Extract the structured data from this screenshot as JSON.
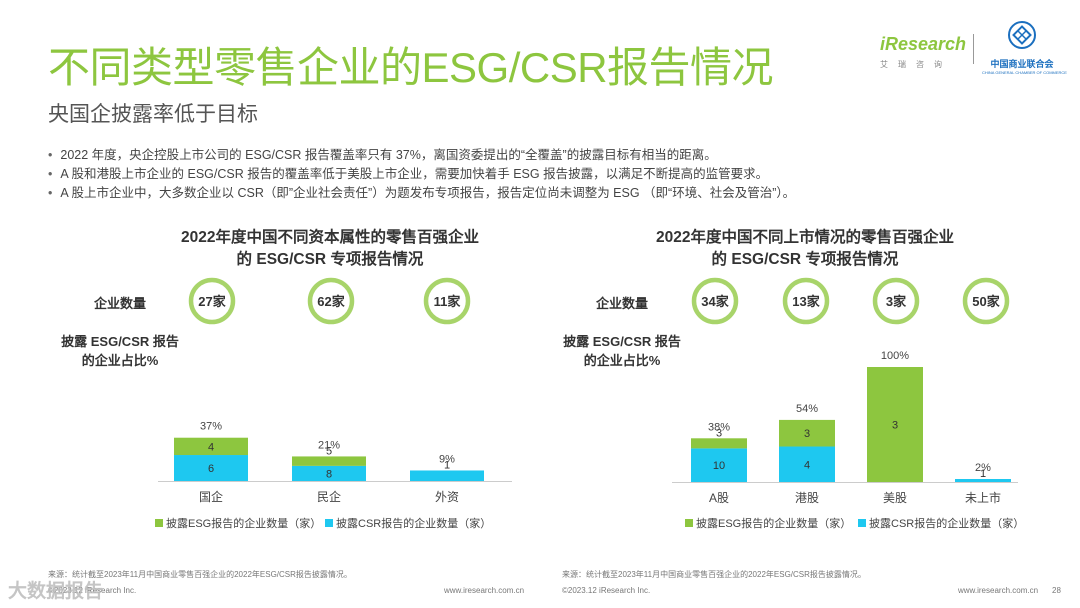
{
  "header": {
    "title": "不同类型零售企业的ESG/CSR报告情况",
    "subtitle": "央国企披露率低于目标"
  },
  "logos": {
    "iresearch": {
      "word": "iResearch",
      "sub": "艾瑞咨询"
    },
    "ccc": {
      "cn": "中国商业联合会",
      "en": "CHINA GENERAL CHAMBER OF COMMERCE"
    }
  },
  "bullets": [
    "2022 年度，央企控股上市公司的 ESG/CSR 报告覆盖率只有 37%，离国资委提出的“全覆盖”的披露目标有相当的距离。",
    "A 股和港股上市企业的 ESG/CSR 报告的覆盖率低于美股上市企业，需要加快着手 ESG 报告披露，以满足不断提高的监管要求。",
    "A 股上市企业中，大多数企业以 CSR（即”企业社会责任”）为题发布专项报告，报告定位尚未调整为 ESG （即“环境、社会及管治”）。"
  ],
  "chart_data": [
    {
      "type": "bar",
      "stacked": true,
      "title": [
        "2022年度中国不同资本属性的零售百强企业",
        "的 ESG/CSR 专项报告情况"
      ],
      "count_label": "企业数量",
      "ratio_label": [
        "披露 ESG/CSR 报告",
        "的企业占比%"
      ],
      "categories": [
        "国企",
        "民企",
        "外资"
      ],
      "counts": [
        "27家",
        "62家",
        "11家"
      ],
      "percent_labels": [
        "37%",
        "21%",
        "9%"
      ],
      "percent": [
        37,
        21,
        9
      ],
      "series": [
        {
          "name": "披露CSR报告的企业数量（家）",
          "color": "#1ec8f0",
          "values": [
            6,
            8,
            1
          ]
        },
        {
          "name": "披露ESG报告的企业数量（家）",
          "color": "#8dc63f",
          "values": [
            4,
            5,
            0
          ]
        }
      ],
      "legend": [
        "披露ESG报告的企业数量（家）",
        "披露CSR报告的企业数量（家）"
      ],
      "legend_colors": [
        "#8dc63f",
        "#1ec8f0"
      ],
      "ylim": [
        0,
        100
      ]
    },
    {
      "type": "bar",
      "stacked": true,
      "title": [
        "2022年度中国不同上市情况的零售百强企业",
        "的 ESG/CSR 专项报告情况"
      ],
      "count_label": "企业数量",
      "ratio_label": [
        "披露 ESG/CSR 报告",
        "的企业占比%"
      ],
      "categories": [
        "A股",
        "港股",
        "美股",
        "未上市"
      ],
      "counts": [
        "34家",
        "13家",
        "3家",
        "50家"
      ],
      "percent_labels": [
        "38%",
        "54%",
        "100%",
        "2%"
      ],
      "percent": [
        38,
        54,
        100,
        2
      ],
      "series": [
        {
          "name": "披露CSR报告的企业数量（家）",
          "color": "#1ec8f0",
          "values": [
            10,
            4,
            0,
            1
          ]
        },
        {
          "name": "披露ESG报告的企业数量（家）",
          "color": "#8dc63f",
          "values": [
            3,
            3,
            3,
            0
          ]
        }
      ],
      "legend": [
        "披露ESG报告的企业数量（家）",
        "披露CSR报告的企业数量（家）"
      ],
      "legend_colors": [
        "#8dc63f",
        "#1ec8f0"
      ],
      "ylim": [
        0,
        100
      ]
    }
  ],
  "footer": {
    "source_left": "来源：统计截至2023年11月中国商业零售百强企业的2022年ESG/CSR报告披露情况。",
    "source_right": "来源：统计截至2023年11月中国商业零售百强企业的2022年ESG/CSR报告披露情况。",
    "copyright_left": "©2023.12 iResearch Inc.",
    "url_left": "www.iresearch.com.cn",
    "copyright_right": "©2023.12 iResearch Inc.",
    "url_right": "www.iresearch.com.cn",
    "page": "28",
    "watermark": "大数据报告"
  }
}
